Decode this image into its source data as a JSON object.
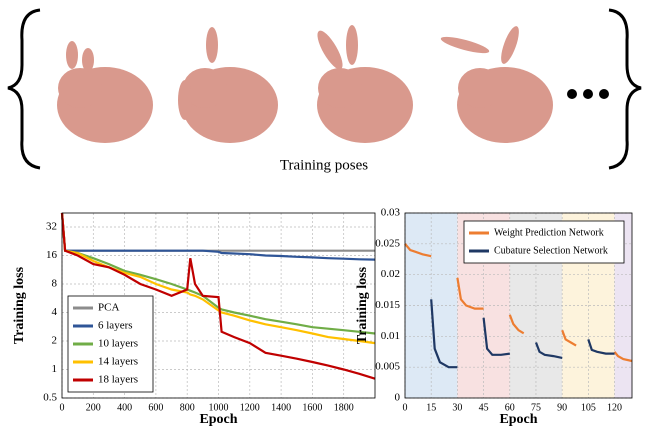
{
  "figure": {
    "caption": "Training poses"
  },
  "chart_data": [
    {
      "type": "line",
      "xlabel": "Epoch",
      "ylabel": "Training loss",
      "log_y": true,
      "grid": true,
      "legend": "lower left",
      "xlim": [
        0,
        2000
      ],
      "xticks": [
        0,
        200,
        400,
        600,
        800,
        1000,
        1200,
        1400,
        1600,
        1800
      ],
      "ylim": [
        0.5,
        45
      ],
      "yticks": [
        0.5,
        1,
        2,
        4,
        8,
        16,
        32
      ],
      "x": [
        0,
        20,
        100,
        200,
        300,
        400,
        500,
        600,
        700,
        800,
        820,
        850,
        900,
        1000,
        1020,
        1100,
        1200,
        1300,
        1400,
        1500,
        1600,
        1700,
        1800,
        1900,
        2000
      ],
      "series": [
        {
          "name": "PCA",
          "color": "#8c8c8c",
          "values": [
            45,
            18,
            18,
            18,
            18,
            18,
            18,
            18,
            18,
            18,
            18,
            18,
            18,
            18,
            18,
            18,
            18,
            18,
            18,
            18,
            18,
            18,
            18,
            18,
            18
          ]
        },
        {
          "name": "6 layers",
          "color": "#2f5597",
          "values": [
            45,
            18,
            18,
            18,
            18,
            18,
            18,
            18,
            18,
            18,
            18,
            18,
            18,
            17.5,
            17,
            16.8,
            16.5,
            16,
            15.8,
            15.5,
            15.3,
            15,
            14.8,
            14.6,
            14.5
          ]
        },
        {
          "name": "10 layers",
          "color": "#70ad47",
          "values": [
            45,
            18,
            17,
            15,
            13,
            11,
            10,
            9,
            8,
            7,
            6.8,
            6.5,
            6,
            4.5,
            4.3,
            4,
            3.7,
            3.4,
            3.2,
            3,
            2.8,
            2.7,
            2.6,
            2.5,
            2.4
          ]
        },
        {
          "name": "14 layers",
          "color": "#ffc000",
          "values": [
            45,
            18,
            17,
            14,
            12,
            10.5,
            9.5,
            8,
            7,
            6.5,
            6.2,
            6,
            5.5,
            4.2,
            4,
            3.7,
            3.3,
            3,
            2.8,
            2.6,
            2.4,
            2.2,
            2.1,
            2,
            1.9
          ]
        },
        {
          "name": "18 layers",
          "color": "#c00000",
          "values": [
            45,
            18,
            16,
            13,
            12,
            10,
            8,
            7,
            6,
            7,
            15,
            8,
            6,
            5.8,
            2.5,
            2.2,
            1.9,
            1.5,
            1.4,
            1.3,
            1.2,
            1.1,
            1.0,
            0.9,
            0.8
          ]
        }
      ]
    },
    {
      "type": "line",
      "xlabel": "Epoch",
      "ylabel": "Training loss",
      "log_y": false,
      "grid": true,
      "legend": "upper right",
      "xlim": [
        0,
        130
      ],
      "xticks": [
        0,
        15,
        30,
        45,
        60,
        75,
        90,
        105,
        120
      ],
      "ylim": [
        0,
        0.03
      ],
      "yticks": [
        0,
        0.005,
        0.01,
        0.015,
        0.02,
        0.025,
        0.03
      ],
      "bands": [
        {
          "range": [
            0,
            30
          ],
          "color": "#dde9f5"
        },
        {
          "range": [
            30,
            60
          ],
          "color": "#f8e1e1"
        },
        {
          "range": [
            60,
            90
          ],
          "color": "#e8e8e8"
        },
        {
          "range": [
            90,
            120
          ],
          "color": "#fdf3dc"
        },
        {
          "range": [
            120,
            130
          ],
          "color": "#ece4f2"
        }
      ],
      "series": [
        {
          "name": "Weight Prediction Network",
          "color": "#ed7d31",
          "x": [
            0,
            3,
            6,
            10,
            15,
            null,
            30,
            32,
            35,
            40,
            45,
            null,
            60,
            62,
            65,
            68,
            null,
            90,
            92,
            95,
            98,
            null,
            120,
            122,
            125,
            130
          ],
          "values": [
            0.025,
            0.024,
            0.0237,
            0.0233,
            0.023,
            null,
            0.0195,
            0.016,
            0.015,
            0.0145,
            0.0145,
            null,
            0.0135,
            0.012,
            0.011,
            0.0105,
            null,
            0.011,
            0.0095,
            0.009,
            0.0085,
            null,
            0.0075,
            0.0068,
            0.0063,
            0.006
          ]
        },
        {
          "name": "Cubature Selection Network",
          "color": "#1f3864",
          "x": [
            15,
            17,
            20,
            25,
            30,
            null,
            45,
            47,
            50,
            55,
            60,
            null,
            75,
            77,
            80,
            85,
            90,
            null,
            105,
            107,
            110,
            115,
            120
          ],
          "values": [
            0.016,
            0.008,
            0.0058,
            0.005,
            0.005,
            null,
            0.013,
            0.008,
            0.007,
            0.007,
            0.0072,
            null,
            0.009,
            0.0075,
            0.007,
            0.0068,
            0.0065,
            null,
            0.0095,
            0.0078,
            0.0075,
            0.0072,
            0.0072
          ]
        }
      ]
    }
  ]
}
